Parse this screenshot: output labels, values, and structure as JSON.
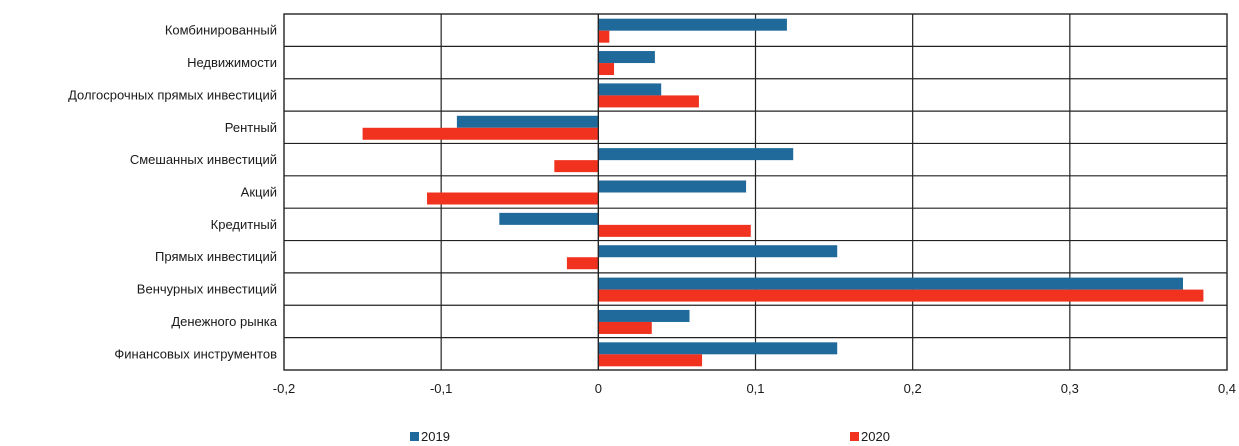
{
  "chart_data": {
    "type": "bar",
    "orientation": "horizontal",
    "title": "",
    "xlabel": "",
    "ylabel": "",
    "categories": [
      "Комбинированный",
      "Недвижимости",
      "Долгосрочных прямых инвестиций",
      "Рентный",
      "Смешанных инвестиций",
      "Акций",
      "Кредитный",
      "Прямых инвестиций",
      "Венчурных инвестиций",
      "Денежного рынка",
      "Финансовых инструментов"
    ],
    "series": [
      {
        "name": "2019",
        "color": "#1f6a9a",
        "values": [
          0.12,
          0.036,
          0.04,
          -0.09,
          0.124,
          0.094,
          -0.063,
          0.152,
          0.372,
          0.058,
          0.152
        ]
      },
      {
        "name": "2020",
        "color": "#f0321f",
        "values": [
          0.007,
          0.01,
          0.064,
          -0.15,
          -0.028,
          -0.109,
          0.097,
          -0.02,
          0.385,
          0.034,
          0.066
        ]
      }
    ],
    "xlim": [
      -0.2,
      0.4
    ],
    "ticks": [
      -0.2,
      -0.1,
      0,
      0.1,
      0.2,
      0.3,
      0.4
    ],
    "tick_labels": [
      "-0,2",
      "-0,1",
      "0",
      "0,1",
      "0,2",
      "0,3",
      "0,4"
    ],
    "grid": true,
    "legend_position": "bottom"
  }
}
